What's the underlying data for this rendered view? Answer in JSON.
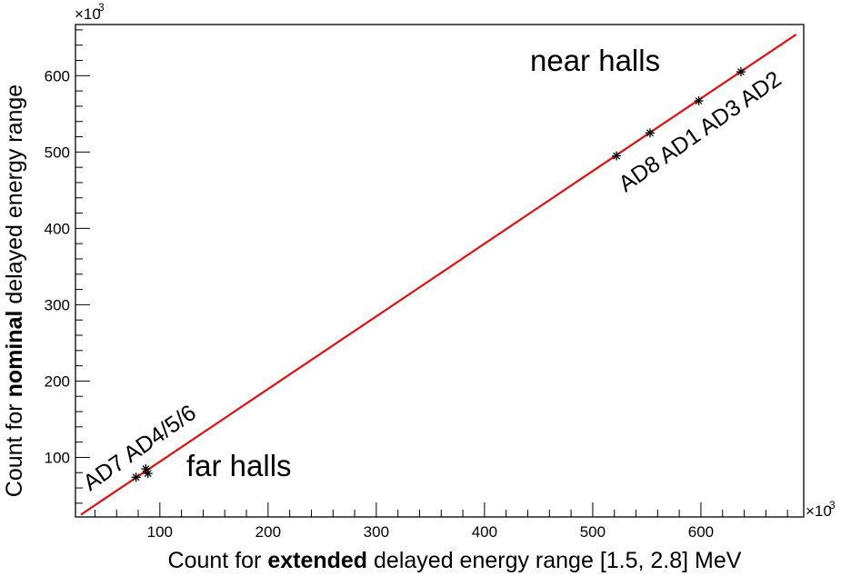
{
  "chart_data": {
    "type": "scatter",
    "title": "",
    "xlabel_parts": [
      "Count for ",
      "extended",
      " delayed energy range [1.5, 2.8] MeV"
    ],
    "ylabel_parts": [
      "Count for ",
      "nominal",
      " delayed energy range"
    ],
    "x_multiplier": "×10",
    "y_multiplier": "×10",
    "multiplier_exp": "3",
    "xlim": [
      22,
      695
    ],
    "ylim": [
      22,
      667
    ],
    "x_ticks": [
      100,
      200,
      300,
      400,
      500,
      600
    ],
    "y_ticks": [
      100,
      200,
      300,
      400,
      500,
      600
    ],
    "x_minor_step": 20,
    "y_minor_step": 20,
    "grid": false,
    "points_unit": "thousands of counts",
    "points": [
      {
        "x": 78,
        "y": 74
      },
      {
        "x": 87,
        "y": 85
      },
      {
        "x": 89,
        "y": 79
      },
      {
        "x": 522,
        "y": 495
      },
      {
        "x": 553,
        "y": 525
      },
      {
        "x": 598,
        "y": 567
      },
      {
        "x": 637,
        "y": 605
      }
    ],
    "fit_line": {
      "x": [
        27,
        688
      ],
      "y": [
        25,
        654
      ],
      "color": "#e01010"
    },
    "annotations": {
      "near_halls": "near halls",
      "far_halls": "far halls",
      "near_detectors": "AD8 AD1 AD3 AD2",
      "far_detectors": "AD7 AD4/5/6"
    },
    "marker_color": "#000000"
  }
}
